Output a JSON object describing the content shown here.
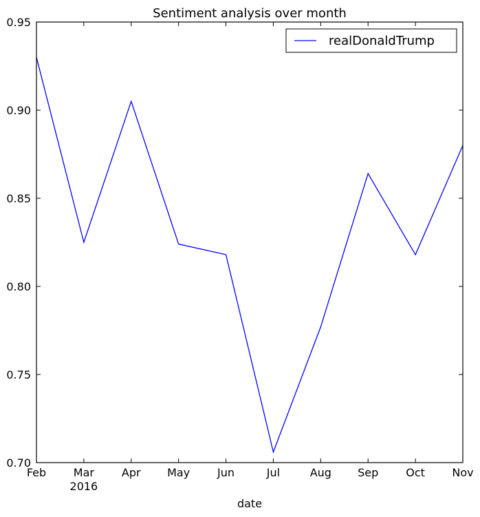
{
  "chart_data": {
    "type": "line",
    "title": "Sentiment analysis over month",
    "xlabel": "date",
    "ylabel": "",
    "x": [
      "Feb",
      "Mar",
      "Apr",
      "May",
      "Jun",
      "Jul",
      "Aug",
      "Sep",
      "Oct",
      "Nov"
    ],
    "x_sublabels": {
      "Mar": "2016"
    },
    "ylim": [
      0.7,
      0.95
    ],
    "yticks": [
      "0.70",
      "0.75",
      "0.80",
      "0.85",
      "0.90",
      "0.95"
    ],
    "grid": false,
    "legend_position": "top-right",
    "series": [
      {
        "name": "realDonaldTrump",
        "color": "#0000ff",
        "values": [
          0.93,
          0.825,
          0.905,
          0.824,
          0.818,
          0.706,
          0.777,
          0.864,
          0.818,
          0.88
        ]
      }
    ]
  }
}
